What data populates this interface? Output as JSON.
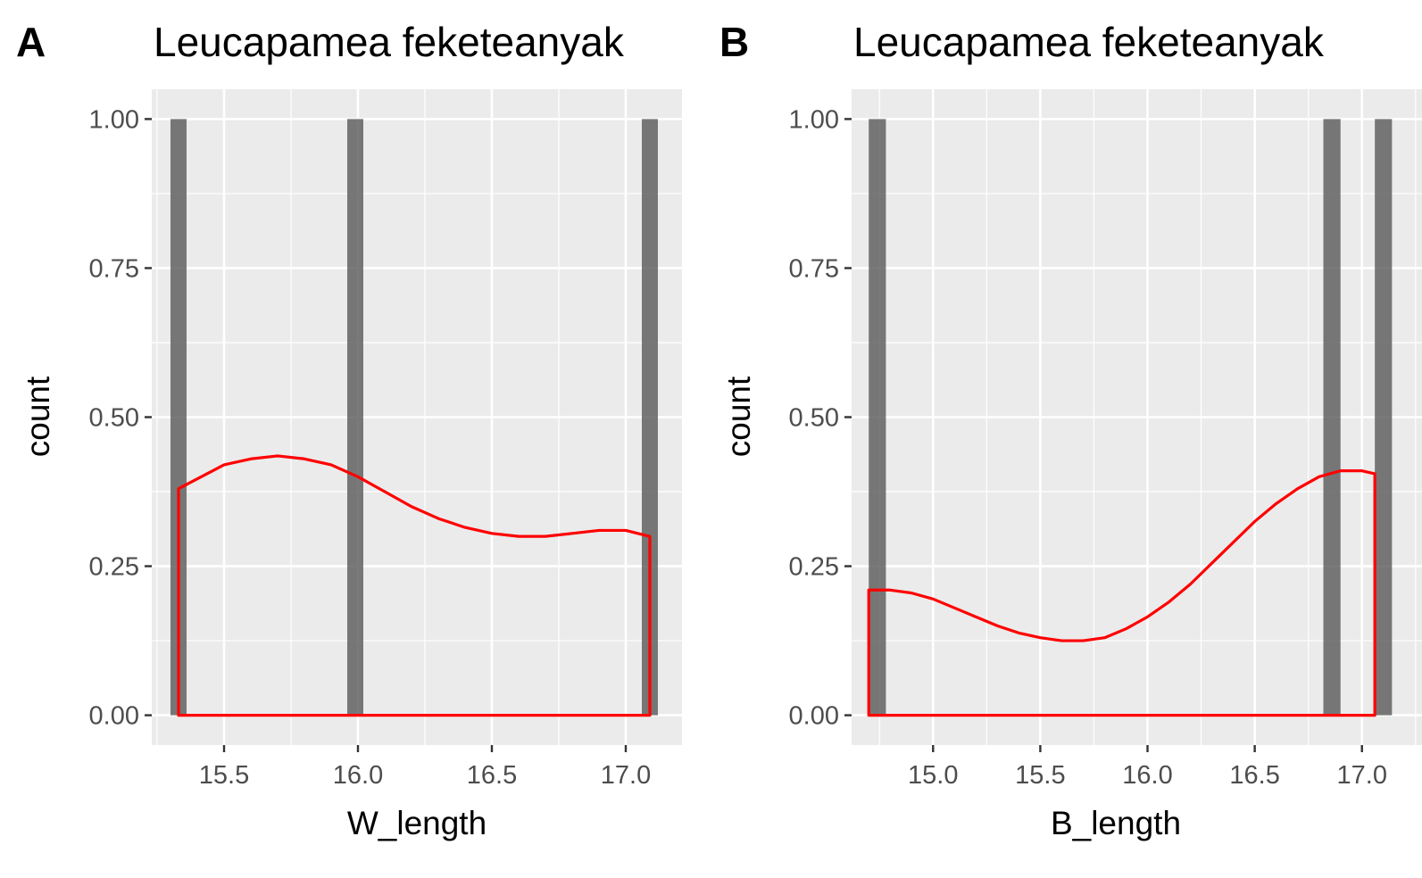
{
  "chart_data": [
    {
      "type": "bar",
      "panel_tag": "A",
      "title": "Leucapamea feketeanyak",
      "xlabel": "W_length",
      "ylabel": "count",
      "xlim": [
        15.23,
        17.21
      ],
      "ylim": [
        -0.05,
        1.05
      ],
      "xticks": [
        "15.5",
        "16.0",
        "16.5",
        "17.0"
      ],
      "xtick_values": [
        15.5,
        16.0,
        16.5,
        17.0
      ],
      "yticks": [
        "0.00",
        "0.25",
        "0.50",
        "0.75",
        "1.00"
      ],
      "ytick_values": [
        0.0,
        0.25,
        0.5,
        0.75,
        1.0
      ],
      "bar_width": 0.06,
      "bars": [
        {
          "x": 15.33,
          "count": 1
        },
        {
          "x": 15.99,
          "count": 1
        },
        {
          "x": 17.09,
          "count": 1
        }
      ],
      "density": {
        "color": "#ff0000",
        "x": [
          15.33,
          15.5,
          15.6,
          15.7,
          15.8,
          15.9,
          16.0,
          16.1,
          16.2,
          16.3,
          16.4,
          16.5,
          16.6,
          16.7,
          16.8,
          16.9,
          17.0,
          17.09
        ],
        "y": [
          0.38,
          0.42,
          0.43,
          0.435,
          0.43,
          0.42,
          0.4,
          0.375,
          0.35,
          0.33,
          0.315,
          0.305,
          0.3,
          0.3,
          0.305,
          0.31,
          0.31,
          0.3
        ]
      },
      "grid": true,
      "bar_color": "#595959"
    },
    {
      "type": "bar",
      "panel_tag": "B",
      "title": "Leucapamea feketeanyak",
      "xlabel": "B_length",
      "ylabel": "count",
      "xlim": [
        14.62,
        17.28
      ],
      "ylim": [
        -0.05,
        1.05
      ],
      "xticks": [
        "15.0",
        "15.5",
        "16.0",
        "16.5",
        "17.0"
      ],
      "xtick_values": [
        15.0,
        15.5,
        16.0,
        16.5,
        17.0
      ],
      "yticks": [
        "0.00",
        "0.25",
        "0.50",
        "0.75",
        "1.00"
      ],
      "ytick_values": [
        0.0,
        0.25,
        0.5,
        0.75,
        1.0
      ],
      "bar_width": 0.08,
      "bars": [
        {
          "x": 14.74,
          "count": 1
        },
        {
          "x": 16.86,
          "count": 1
        },
        {
          "x": 17.1,
          "count": 1
        }
      ],
      "density": {
        "color": "#ff0000",
        "x": [
          14.7,
          14.8,
          14.9,
          15.0,
          15.1,
          15.2,
          15.3,
          15.4,
          15.5,
          15.6,
          15.7,
          15.8,
          15.9,
          16.0,
          16.1,
          16.2,
          16.3,
          16.4,
          16.5,
          16.6,
          16.7,
          16.8,
          16.9,
          17.0,
          17.06
        ],
        "y": [
          0.21,
          0.21,
          0.205,
          0.195,
          0.18,
          0.165,
          0.15,
          0.138,
          0.13,
          0.125,
          0.125,
          0.13,
          0.145,
          0.165,
          0.19,
          0.22,
          0.255,
          0.29,
          0.325,
          0.355,
          0.38,
          0.4,
          0.41,
          0.41,
          0.405
        ]
      },
      "grid": true,
      "bar_color": "#595959"
    }
  ]
}
